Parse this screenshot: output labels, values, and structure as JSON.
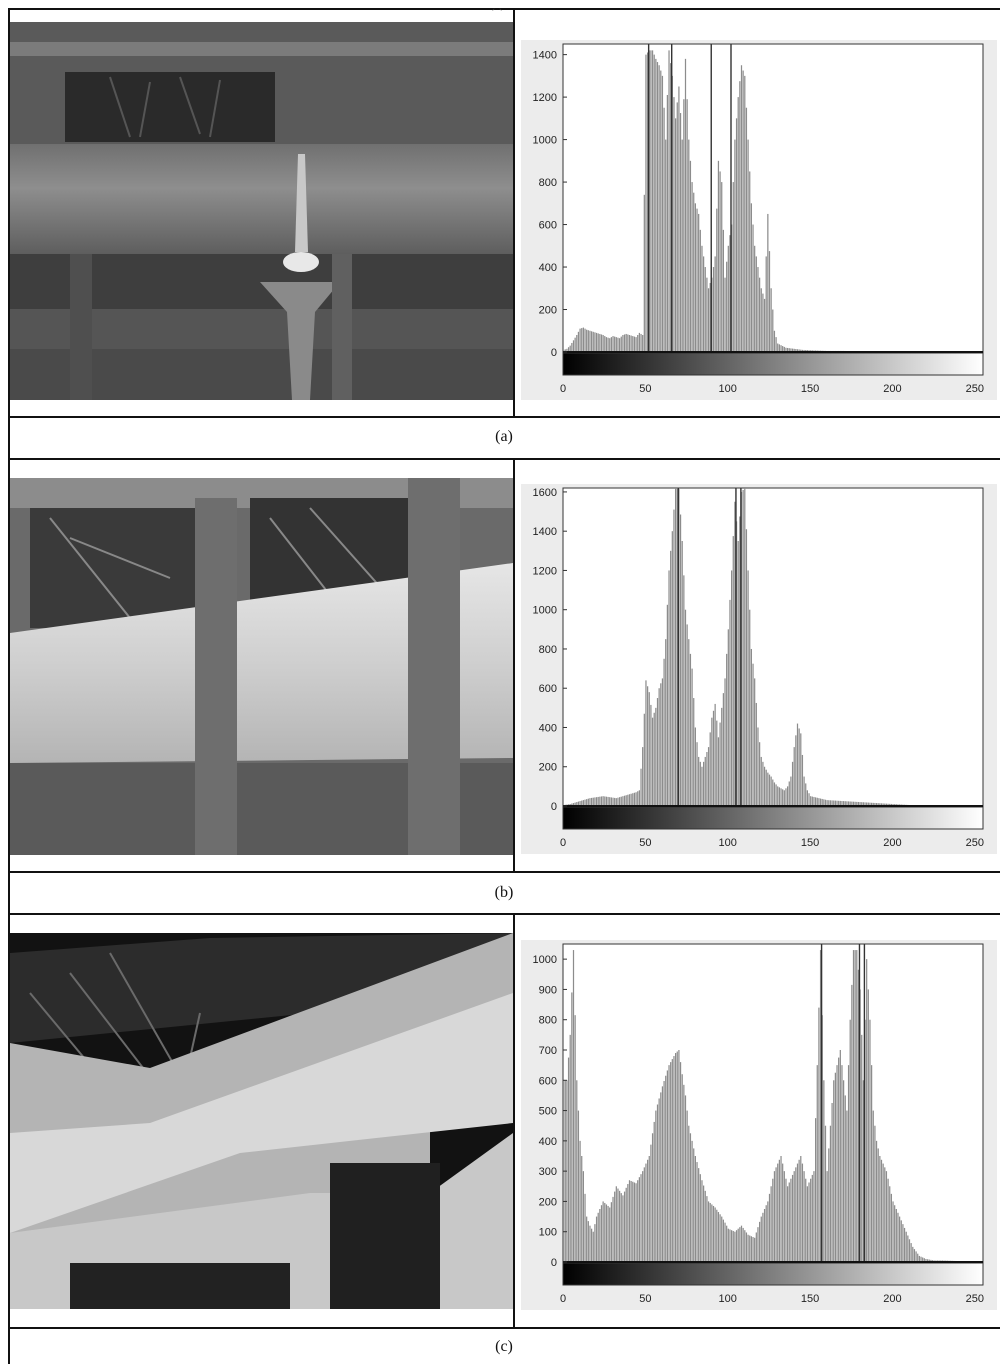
{
  "top_mark": "´ `",
  "panels": [
    {
      "caption": "(a)"
    },
    {
      "caption": "(b)"
    },
    {
      "caption": "(c)"
    }
  ],
  "colors": {
    "bar": "#8c8c8c",
    "frame": "#111111",
    "panel_bg": "#ececec"
  },
  "chart_data": [
    {
      "type": "bar",
      "panel": "(a)",
      "x": [
        0,
        2,
        4,
        6,
        8,
        10,
        12,
        14,
        16,
        18,
        20,
        22,
        24,
        26,
        28,
        30,
        32,
        34,
        36,
        38,
        40,
        42,
        44,
        46,
        48,
        50,
        52,
        54,
        56,
        58,
        60,
        62,
        64,
        66,
        68,
        70,
        72,
        74,
        76,
        78,
        80,
        82,
        84,
        86,
        88,
        90,
        92,
        94,
        96,
        98,
        100,
        102,
        104,
        106,
        108,
        110,
        112,
        114,
        116,
        118,
        120,
        122,
        124,
        126,
        128,
        130,
        135,
        140,
        145,
        150,
        160,
        170,
        180,
        200,
        220,
        240,
        255
      ],
      "values": [
        10,
        15,
        30,
        55,
        80,
        110,
        115,
        105,
        100,
        95,
        90,
        85,
        80,
        70,
        65,
        75,
        70,
        65,
        80,
        85,
        80,
        75,
        70,
        90,
        80,
        1400,
        1420,
        1420,
        1380,
        1350,
        1300,
        1000,
        1420,
        1300,
        1100,
        1250,
        1000,
        1380,
        1000,
        800,
        700,
        650,
        500,
        400,
        300,
        350,
        450,
        900,
        800,
        350,
        500,
        600,
        1000,
        1200,
        1350,
        1300,
        1000,
        700,
        500,
        400,
        300,
        250,
        650,
        300,
        100,
        40,
        20,
        15,
        10,
        8,
        5,
        5,
        3,
        2,
        0,
        0,
        0
      ],
      "ylim": [
        0,
        1450
      ],
      "xlim": [
        0,
        255
      ],
      "yticks": [
        0,
        200,
        400,
        600,
        800,
        1000,
        1200,
        1400
      ],
      "xticks": [
        0,
        50,
        100,
        150,
        200,
        250
      ],
      "tall_lines": [
        52,
        66,
        90,
        102
      ]
    },
    {
      "type": "bar",
      "panel": "(b)",
      "x": [
        0,
        4,
        8,
        12,
        16,
        20,
        24,
        28,
        32,
        36,
        40,
        44,
        46,
        48,
        50,
        52,
        54,
        56,
        58,
        60,
        62,
        64,
        66,
        68,
        70,
        72,
        74,
        76,
        78,
        80,
        82,
        84,
        86,
        88,
        90,
        92,
        94,
        96,
        98,
        100,
        102,
        104,
        106,
        108,
        110,
        112,
        114,
        116,
        118,
        120,
        122,
        124,
        126,
        128,
        130,
        132,
        134,
        136,
        138,
        140,
        142,
        144,
        146,
        148,
        150,
        155,
        160,
        170,
        180,
        190,
        200,
        210,
        230,
        255
      ],
      "values": [
        5,
        10,
        20,
        30,
        40,
        45,
        50,
        45,
        40,
        50,
        60,
        70,
        80,
        300,
        640,
        580,
        450,
        500,
        600,
        650,
        850,
        1200,
        1400,
        1620,
        1620,
        1350,
        1000,
        850,
        700,
        400,
        250,
        200,
        250,
        300,
        450,
        520,
        350,
        500,
        650,
        900,
        1200,
        1550,
        1350,
        1600,
        1620,
        1200,
        800,
        650,
        400,
        250,
        200,
        170,
        150,
        120,
        100,
        90,
        80,
        100,
        150,
        300,
        420,
        370,
        150,
        80,
        50,
        40,
        30,
        25,
        20,
        15,
        10,
        5,
        3,
        0
      ],
      "ylim": [
        0,
        1620
      ],
      "xlim": [
        0,
        255
      ],
      "yticks": [
        0,
        200,
        400,
        600,
        800,
        1000,
        1200,
        1400,
        1600
      ],
      "xticks": [
        0,
        50,
        100,
        150,
        200,
        250
      ],
      "tall_lines": [
        70,
        105,
        108
      ]
    },
    {
      "type": "bar",
      "panel": "(c)",
      "x": [
        2,
        4,
        6,
        8,
        10,
        12,
        14,
        16,
        18,
        20,
        24,
        28,
        32,
        36,
        40,
        44,
        48,
        52,
        56,
        60,
        64,
        68,
        70,
        72,
        74,
        76,
        80,
        84,
        88,
        92,
        96,
        100,
        104,
        108,
        112,
        116,
        120,
        124,
        128,
        132,
        136,
        140,
        144,
        148,
        152,
        154,
        156,
        158,
        160,
        164,
        168,
        172,
        174,
        176,
        178,
        180,
        182,
        184,
        186,
        188,
        190,
        192,
        196,
        200,
        204,
        208,
        212,
        216,
        220,
        225,
        230,
        240,
        250
      ],
      "values": [
        600,
        750,
        1030,
        600,
        400,
        300,
        150,
        120,
        100,
        150,
        200,
        180,
        250,
        220,
        270,
        260,
        300,
        350,
        500,
        580,
        650,
        690,
        700,
        620,
        550,
        450,
        350,
        270,
        200,
        180,
        150,
        110,
        100,
        120,
        90,
        80,
        150,
        200,
        300,
        350,
        250,
        300,
        350,
        250,
        300,
        650,
        1030,
        600,
        300,
        600,
        700,
        500,
        800,
        1030,
        1030,
        900,
        600,
        1000,
        800,
        500,
        400,
        350,
        300,
        200,
        150,
        100,
        50,
        20,
        10,
        5,
        5,
        3,
        2
      ],
      "ylim": [
        0,
        1050
      ],
      "xlim": [
        0,
        255
      ],
      "yticks": [
        0,
        100,
        200,
        300,
        400,
        500,
        600,
        700,
        800,
        900,
        1000
      ],
      "xticks": [
        0,
        50,
        100,
        150,
        200,
        250
      ],
      "tall_lines": [
        157,
        180,
        183
      ]
    }
  ]
}
